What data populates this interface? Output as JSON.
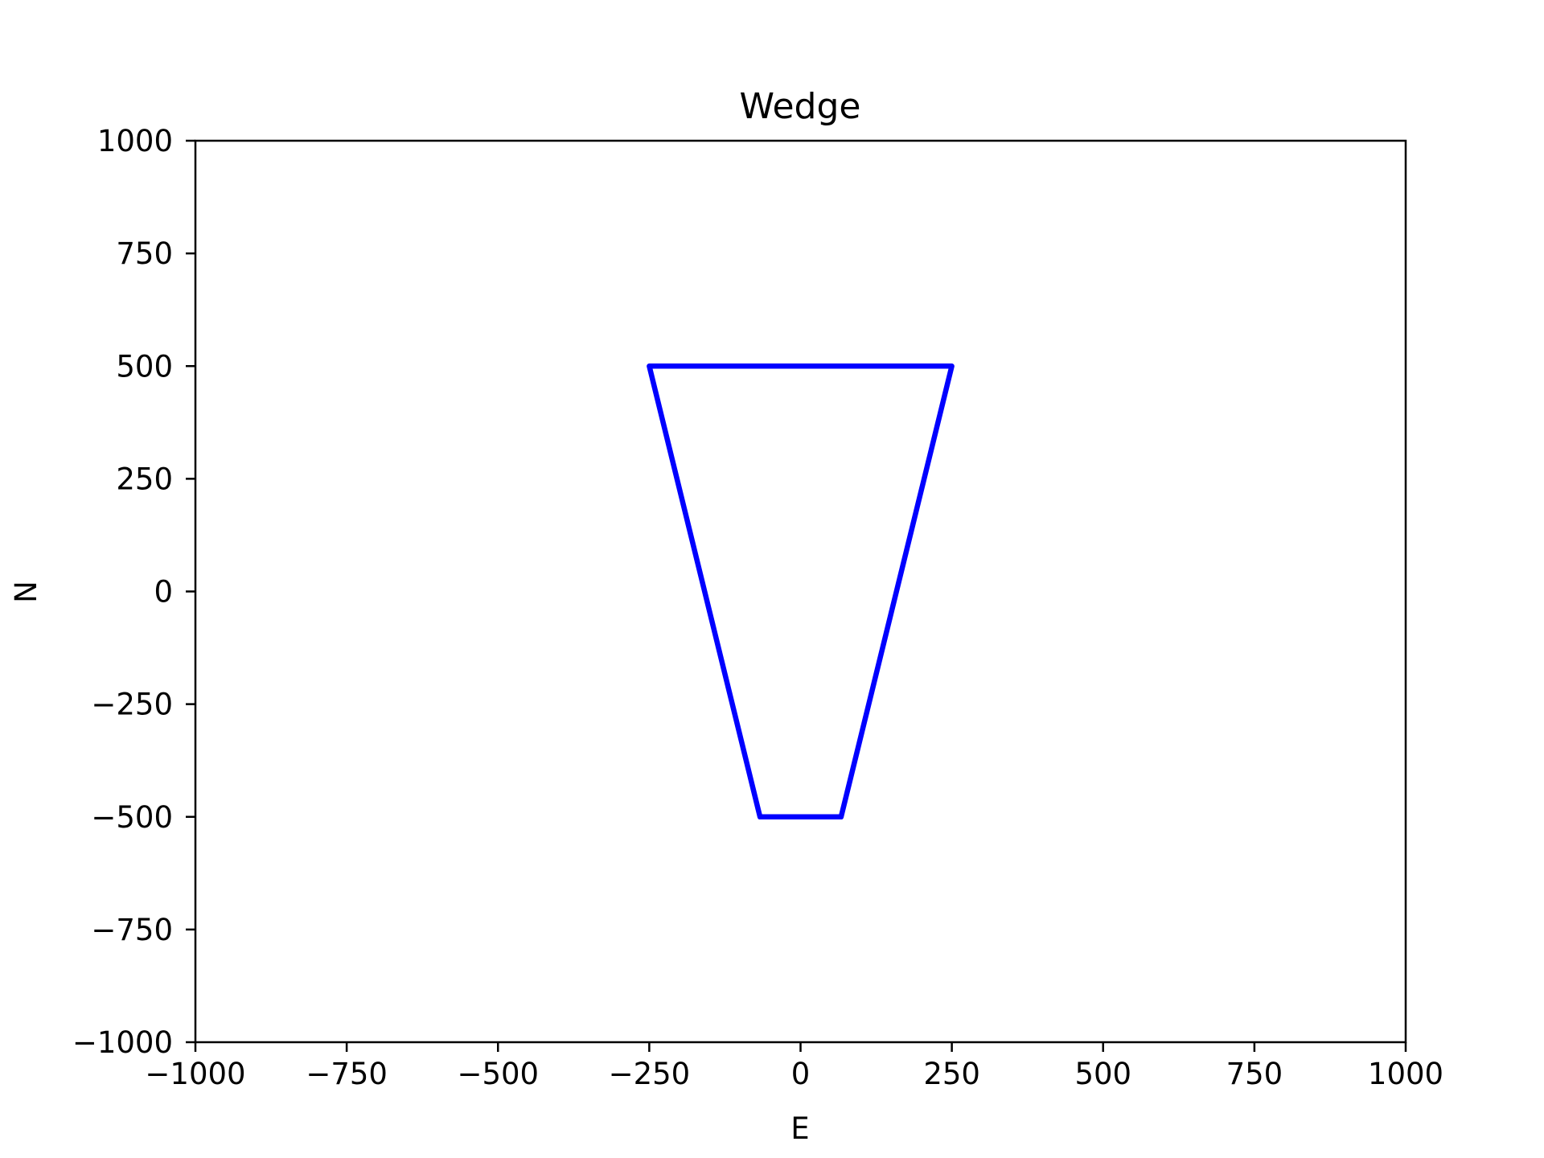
{
  "chart_data": {
    "type": "line",
    "title": "Wedge",
    "xlabel": "E",
    "ylabel": "N",
    "xlim": [
      -1000,
      1000
    ],
    "ylim": [
      -1000,
      1000
    ],
    "xticks": [
      -1000,
      -750,
      -500,
      -250,
      0,
      250,
      500,
      750,
      1000
    ],
    "yticks": [
      -1000,
      -750,
      -500,
      -250,
      0,
      250,
      500,
      750,
      1000
    ],
    "xtick_labels": [
      "−1000",
      "−750",
      "−500",
      "−250",
      "0",
      "250",
      "500",
      "750",
      "1000"
    ],
    "ytick_labels": [
      "−1000",
      "−750",
      "−500",
      "−250",
      "0",
      "250",
      "500",
      "750",
      "1000"
    ],
    "grid": false,
    "series": [
      {
        "color": "#0000ff",
        "x": [
          -250,
          250,
          67,
          -67,
          -250
        ],
        "y": [
          500,
          500,
          -500,
          -500,
          500
        ]
      }
    ]
  }
}
